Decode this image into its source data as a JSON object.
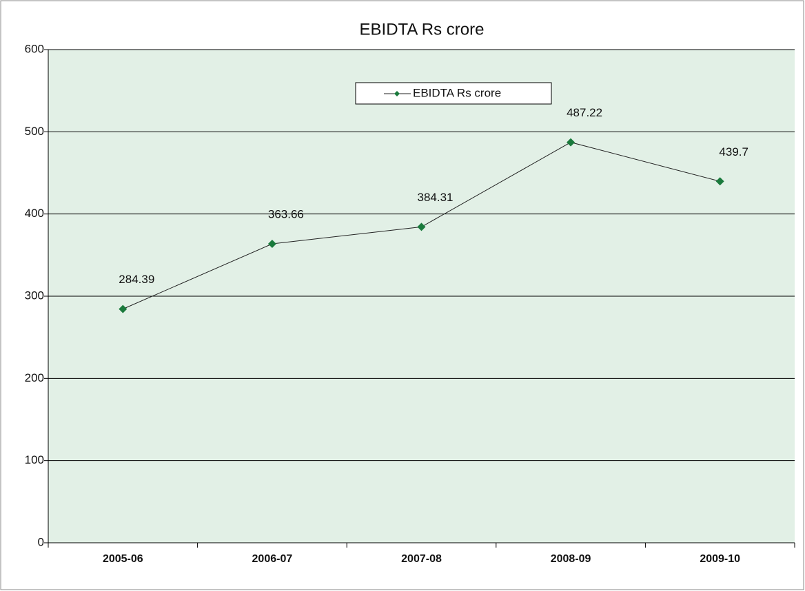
{
  "chart_data": {
    "type": "line",
    "title": "EBIDTA  Rs crore",
    "categories": [
      "2005-06",
      "2006-07",
      "2007-08",
      "2008-09",
      "2009-10"
    ],
    "series": [
      {
        "name": "EBIDTA  Rs crore",
        "color": "#1a7a3c",
        "values": [
          284.39,
          363.66,
          384.31,
          487.22,
          439.7
        ]
      }
    ],
    "ylim": [
      0,
      600
    ],
    "yticks": [
      0,
      100,
      200,
      300,
      400,
      500,
      600
    ],
    "grid": true,
    "legend": "top"
  }
}
